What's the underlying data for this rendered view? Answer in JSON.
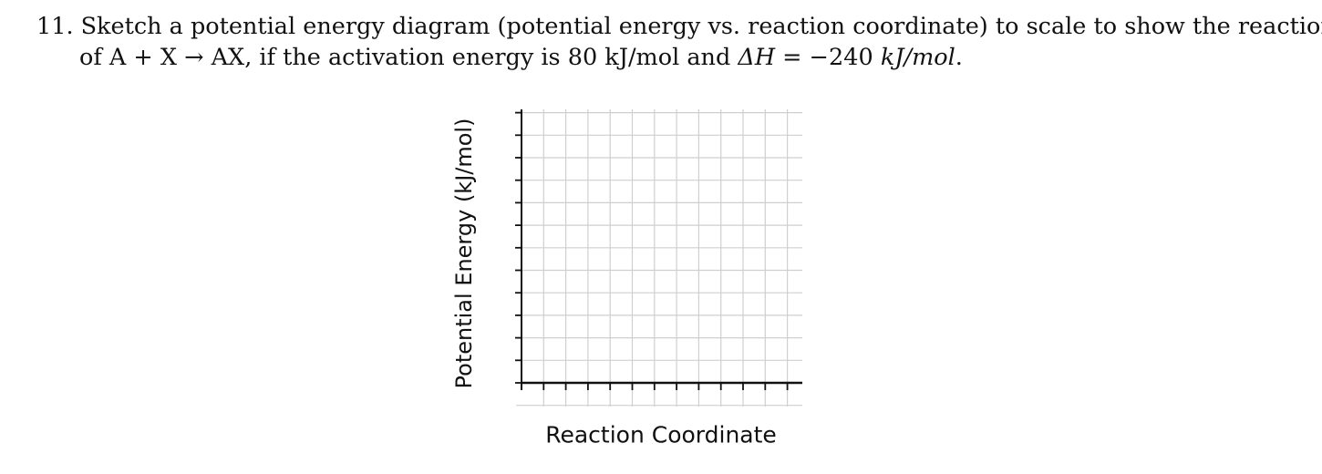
{
  "question": {
    "number": "11.",
    "line1": "Sketch a potential energy diagram (potential energy vs. reaction coordinate) to scale to show the reaction",
    "line2_pre": "of A + X ",
    "arrow": "→",
    "line2_mid": " AX, if the activation energy is 80 kJ/mol and ",
    "delta_h_symbol": "ΔH",
    "equals": " = −240 ",
    "units": "kJ/mol",
    "period": "."
  },
  "graph": {
    "ylabel": "Potential Energy (kJ/mol)",
    "xlabel": "Reaction Coordinate",
    "grid_columns": 12,
    "grid_rows": 12,
    "grid_color": "#cfcfcf",
    "axis_color": "#111111"
  }
}
